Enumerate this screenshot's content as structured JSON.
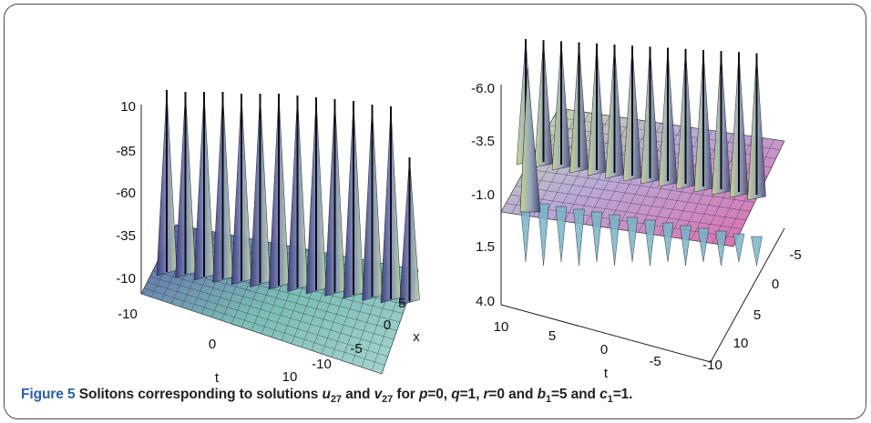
{
  "figure": {
    "caption_label": "Figure 5",
    "caption_text_parts": [
      {
        "t": " Solitons corresponding to solutions ",
        "style": "normal"
      },
      {
        "t": "u",
        "style": "italic"
      },
      {
        "t": "27",
        "style": "sub"
      },
      {
        "t": " and ",
        "style": "normal"
      },
      {
        "t": "v",
        "style": "italic"
      },
      {
        "t": "27",
        "style": "sub"
      },
      {
        "t": " for ",
        "style": "normal"
      },
      {
        "t": "p",
        "style": "italic"
      },
      {
        "t": "=0, ",
        "style": "normal"
      },
      {
        "t": "q",
        "style": "italic"
      },
      {
        "t": "=1, ",
        "style": "normal"
      },
      {
        "t": "r",
        "style": "italic"
      },
      {
        "t": "=0 and ",
        "style": "normal"
      },
      {
        "t": "b",
        "style": "italic"
      },
      {
        "t": "1",
        "style": "sub"
      },
      {
        "t": "=5 and ",
        "style": "normal"
      },
      {
        "t": "c",
        "style": "italic"
      },
      {
        "t": "1",
        "style": "sub"
      },
      {
        "t": "=1.",
        "style": "normal"
      }
    ]
  },
  "chart_data": [
    {
      "type": "surface3d",
      "z_ticks": [
        "10",
        "-85",
        "-60",
        "-35",
        "-10"
      ],
      "t_ticks": [
        "-10",
        "0",
        "10"
      ],
      "x_ticks": [
        "5",
        "0",
        "-5",
        "-10"
      ],
      "t_label": "t",
      "x_label": "x",
      "colors": {
        "low": "#6f5fa8",
        "mid": "#7ab8b0",
        "high": "#c9d98a"
      }
    },
    {
      "type": "surface3d",
      "z_ticks": [
        "-6.0",
        "-3.5",
        "-1.0",
        "1.5",
        "4.0"
      ],
      "t_ticks": [
        "10",
        "5",
        "0",
        "-5",
        "-10"
      ],
      "x_ticks": [
        "-5",
        "0",
        "5",
        "10"
      ],
      "t_label": "t",
      "x_label": "",
      "colors": {
        "low": "#d86aa6",
        "mid": "#b7b8e6",
        "high": "#d7e29a"
      }
    }
  ]
}
